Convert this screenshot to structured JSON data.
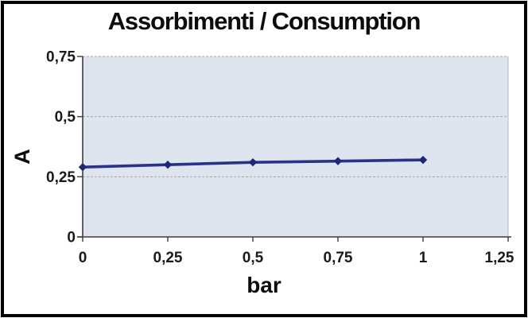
{
  "window": {
    "background": "#ffffff",
    "frame_color": "#000000"
  },
  "chart_data": {
    "type": "line",
    "title": "Assorbimenti / Consumption",
    "xlabel": "bar",
    "ylabel": "A",
    "x": [
      0,
      0.25,
      0.5,
      0.75,
      1
    ],
    "series": [
      {
        "name": "Assorbimenti / Consumption",
        "values": [
          0.29,
          0.3,
          0.31,
          0.315,
          0.32
        ]
      }
    ],
    "xlim": [
      0,
      1.25
    ],
    "ylim": [
      0,
      0.75
    ],
    "x_ticks": [
      0,
      0.25,
      0.5,
      0.75,
      1,
      1.25
    ],
    "x_tick_labels": [
      "0",
      "0,25",
      "0,5",
      "0,75",
      "1",
      "1,25"
    ],
    "y_ticks": [
      0,
      0.25,
      0.5,
      0.75
    ],
    "y_tick_labels": [
      "0",
      "0,25",
      "0,5",
      "0,75"
    ],
    "grid": "horizontal-dashed",
    "legend": "none",
    "marker": "diamond",
    "colors": {
      "line": "#2b3288",
      "marker": "#1f2779",
      "plot_bg": "#dfe5ee",
      "gridline": "#a8a8a8",
      "plot_border": "#b7b7b7",
      "axis": "#3c3c3c",
      "text": "#1a1a1a"
    }
  }
}
